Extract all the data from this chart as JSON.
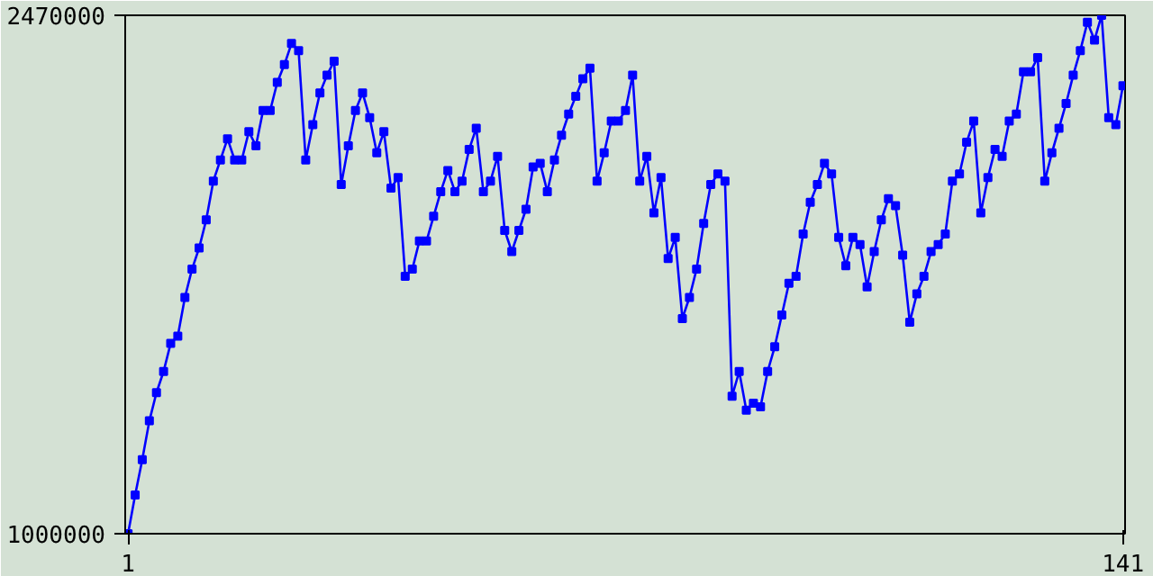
{
  "chart_data": {
    "type": "line",
    "marker": "square",
    "line_style": "solid",
    "grid": false,
    "x": [
      1,
      2,
      3,
      4,
      5,
      6,
      7,
      8,
      9,
      10,
      11,
      12,
      13,
      14,
      15,
      16,
      17,
      18,
      19,
      20,
      21,
      22,
      23,
      24,
      25,
      26,
      27,
      28,
      29,
      30,
      31,
      32,
      33,
      34,
      35,
      36,
      37,
      38,
      39,
      40,
      41,
      42,
      43,
      44,
      45,
      46,
      47,
      48,
      49,
      50,
      51,
      52,
      53,
      54,
      55,
      56,
      57,
      58,
      59,
      60,
      61,
      62,
      63,
      64,
      65,
      66,
      67,
      68,
      69,
      70,
      71,
      72,
      73,
      74,
      75,
      76,
      77,
      78,
      79,
      80,
      81,
      82,
      83,
      84,
      85,
      86,
      87,
      88,
      89,
      90,
      91,
      92,
      93,
      94,
      95,
      96,
      97,
      98,
      99,
      100,
      101,
      102,
      103,
      104,
      105,
      106,
      107,
      108,
      109,
      110,
      111,
      112,
      113,
      114,
      115,
      116,
      117,
      118,
      119,
      120,
      121,
      122,
      123,
      124,
      125,
      126,
      127,
      128,
      129,
      130,
      131,
      132,
      133,
      134,
      135,
      136,
      137,
      138,
      139,
      140,
      141
    ],
    "series": [
      {
        "color": "#0000ff",
        "values": [
          1000000,
          1110000,
          1210000,
          1320000,
          1400000,
          1460000,
          1540000,
          1560000,
          1670000,
          1750000,
          1810000,
          1890000,
          2000000,
          2060000,
          2120000,
          2060000,
          2060000,
          2140000,
          2100000,
          2200000,
          2200000,
          2280000,
          2330000,
          2390000,
          2370000,
          2060000,
          2160000,
          2250000,
          2300000,
          2340000,
          1990000,
          2100000,
          2200000,
          2250000,
          2180000,
          2080000,
          2140000,
          1980000,
          2010000,
          1730000,
          1750000,
          1830000,
          1830000,
          1900000,
          1970000,
          2030000,
          1970000,
          2000000,
          2090000,
          2150000,
          1970000,
          2000000,
          2070000,
          1860000,
          1800000,
          1860000,
          1920000,
          2040000,
          2050000,
          1970000,
          2060000,
          2130000,
          2190000,
          2240000,
          2290000,
          2320000,
          2000000,
          2080000,
          2170000,
          2170000,
          2200000,
          2300000,
          2000000,
          2070000,
          1910000,
          2010000,
          1780000,
          1840000,
          1610000,
          1670000,
          1750000,
          1880000,
          1990000,
          2020000,
          2000000,
          1390000,
          1460000,
          1350000,
          1370000,
          1360000,
          1460000,
          1530000,
          1620000,
          1710000,
          1730000,
          1850000,
          1940000,
          1990000,
          2050000,
          2020000,
          1840000,
          1760000,
          1840000,
          1820000,
          1700000,
          1800000,
          1890000,
          1950000,
          1930000,
          1790000,
          1600000,
          1680000,
          1730000,
          1800000,
          1820000,
          1850000,
          2000000,
          2020000,
          2110000,
          2170000,
          1910000,
          2010000,
          2090000,
          2070000,
          2170000,
          2190000,
          2310000,
          2310000,
          2350000,
          2000000,
          2080000,
          2150000,
          2220000,
          2300000,
          2370000,
          2450000,
          2400000,
          2470000,
          2180000,
          2160000,
          2270000
        ]
      }
    ],
    "xlim": [
      0.6,
      141.3
    ],
    "ylim": [
      1000000,
      2470000
    ],
    "xticks": [
      1,
      141
    ],
    "yticks": [
      1000000,
      2470000
    ]
  }
}
